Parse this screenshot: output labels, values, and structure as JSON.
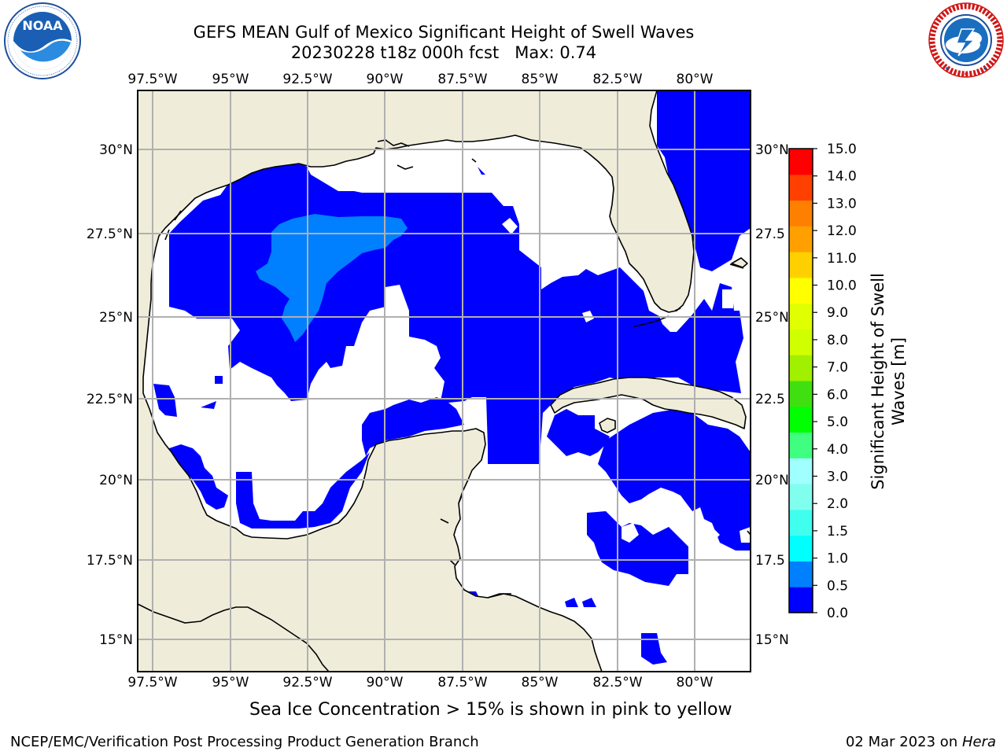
{
  "header": {
    "title_line1": "GEFS MEAN Gulf of Mexico Significant Height of Swell Waves",
    "title_line2": "20230228 t18z 000h fcst   Max: 0.74"
  },
  "logos": {
    "left": {
      "name": "NOAA",
      "text": "NOAA",
      "ring_text": "NATIONAL OCEANIC AND ATMOSPHERIC ADMINISTRATION · U.S. DEPARTMENT OF COMMERCE"
    },
    "right": {
      "name": "National Weather Service",
      "ring_text": "NATIONAL WEATHER SERVICE"
    }
  },
  "map": {
    "lon_labels": [
      "97.5°W",
      "95°W",
      "92.5°W",
      "90°W",
      "87.5°W",
      "85°W",
      "82.5°W",
      "80°W"
    ],
    "lat_labels_left": [
      "30°N",
      "27.5°N",
      "25°N",
      "22.5°N",
      "20°N",
      "17.5°N",
      "15°N"
    ],
    "lat_labels_right": [
      "30°N",
      "27.5",
      "25°N",
      "22.5",
      "20°N",
      "17.5",
      "15°N"
    ],
    "colors": {
      "land": "#efedda",
      "swell_0_0p5": "#0000ff",
      "swell_0p5_1": "#0080ff",
      "grid": "#b0b0b0",
      "coast": "#000000"
    }
  },
  "colorbar": {
    "label_line1": "Significant Height of Swell",
    "label_line2": "Waves [m]",
    "ticks": [
      "15.0",
      "14.0",
      "13.0",
      "12.0",
      "11.0",
      "10.0",
      "9.0",
      "8.0",
      "7.0",
      "6.0",
      "5.0",
      "4.0",
      "3.0",
      "2.0",
      "1.5",
      "1.0",
      "0.5",
      "0.0"
    ],
    "colors_bottom_to_top": [
      "#0000ff",
      "#0080ff",
      "#00ffff",
      "#40ffee",
      "#80ffee",
      "#a0ffff",
      "#40ff80",
      "#00ff00",
      "#40e010",
      "#a0f000",
      "#d0ff00",
      "#e0ff00",
      "#ffff00",
      "#ffd000",
      "#ffa000",
      "#ff8000",
      "#ff4000",
      "#ff0000"
    ]
  },
  "footer": {
    "note": "Sea Ice Concentration > 15% is shown in pink to yellow",
    "left": "NCEP/EMC/Verification Post Processing Product Generation Branch",
    "right_date": "02 Mar 2023 on ",
    "right_host": "Hera"
  }
}
